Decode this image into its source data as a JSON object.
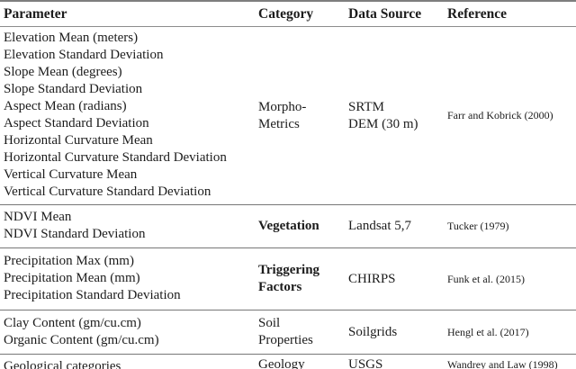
{
  "colors": {
    "text": "#1c1c1c",
    "rule": "#777777",
    "background": "#ffffff"
  },
  "table": {
    "columns": [
      "Parameter",
      "Category",
      "Data Source",
      "Reference"
    ],
    "groups": [
      {
        "parameters": [
          "Elevation Mean (meters)",
          "Elevation Standard Deviation",
          "Slope Mean (degrees)",
          "Slope Standard Deviation",
          "Aspect Mean (radians)",
          "Aspect Standard Deviation",
          "Horizontal Curvature Mean",
          "Horizontal Curvature Standard Deviation",
          "Vertical Curvature Mean",
          "Vertical Curvature Standard Deviation"
        ],
        "category_lines": [
          "Morpho-",
          "Metrics"
        ],
        "category_bold": false,
        "source_lines": [
          "SRTM",
          "DEM (30 m)"
        ],
        "reference": "Farr and Kobrick (2000)"
      },
      {
        "parameters": [
          "NDVI Mean",
          "NDVI Standard Deviation"
        ],
        "category_lines": [
          "Vegetation"
        ],
        "category_bold": true,
        "source_lines": [
          "Landsat 5,7"
        ],
        "reference": "Tucker (1979)"
      },
      {
        "parameters": [
          "Precipitation Max (mm)",
          "Precipitation Mean (mm)",
          "Precipitation Standard Deviation"
        ],
        "category_lines": [
          "Triggering",
          "Factors"
        ],
        "category_bold": true,
        "source_lines": [
          "CHIRPS"
        ],
        "reference": "Funk et al. (2015)"
      },
      {
        "parameters": [
          "Clay Content (gm/cu.cm)",
          "Organic Content (gm/cu.cm)"
        ],
        "category_lines": [
          "Soil",
          "Properties"
        ],
        "category_bold": false,
        "source_lines": [
          "Soilgrids"
        ],
        "reference": "Hengl et al. (2017)"
      },
      {
        "parameters": [
          "Geological categories"
        ],
        "category_lines": [
          "Geology"
        ],
        "category_bold": false,
        "source_lines": [
          "USGS"
        ],
        "reference": "Wandrey and Law (1998)"
      }
    ]
  }
}
